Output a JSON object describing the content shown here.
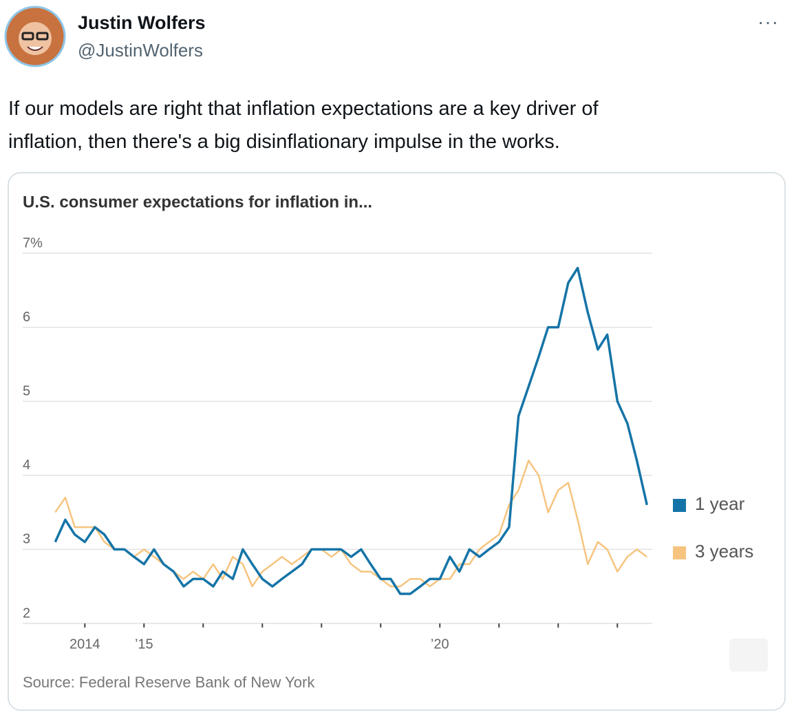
{
  "tweet": {
    "author": {
      "name": "Justin Wolfers",
      "handle": "@JustinWolfers"
    },
    "text": [
      "If our models are right that inflation expectations are a key driver of",
      "inflation, then there's a big disinflationary impulse in the works."
    ]
  },
  "chart_data": {
    "type": "line",
    "title": "U.S. consumer expectations for inflation in...",
    "source": "Source: Federal Reserve Bank of New York",
    "x": [
      2013.5,
      2013.67,
      2013.83,
      2014,
      2014.17,
      2014.33,
      2014.5,
      2014.67,
      2014.83,
      2015,
      2015.17,
      2015.33,
      2015.5,
      2015.67,
      2015.83,
      2016,
      2016.17,
      2016.33,
      2016.5,
      2016.67,
      2016.83,
      2017,
      2017.17,
      2017.33,
      2017.5,
      2017.67,
      2017.83,
      2018,
      2018.17,
      2018.33,
      2018.5,
      2018.67,
      2018.83,
      2019,
      2019.17,
      2019.33,
      2019.5,
      2019.67,
      2019.83,
      2020,
      2020.17,
      2020.33,
      2020.5,
      2020.67,
      2020.83,
      2021,
      2021.17,
      2021.33,
      2021.5,
      2021.67,
      2021.83,
      2022,
      2022.17,
      2022.33,
      2022.5,
      2022.67,
      2022.83,
      2023,
      2023.17,
      2023.33,
      2023.5
    ],
    "series": [
      {
        "name": "1 year",
        "color": "#1574a7",
        "values": [
          3.1,
          3.4,
          3.2,
          3.1,
          3.3,
          3.2,
          3.0,
          3.0,
          2.9,
          2.8,
          3.0,
          2.8,
          2.7,
          2.5,
          2.6,
          2.6,
          2.5,
          2.7,
          2.6,
          3.0,
          2.8,
          2.6,
          2.5,
          2.6,
          2.7,
          2.8,
          3.0,
          3.0,
          3.0,
          3.0,
          2.9,
          3.0,
          2.8,
          2.6,
          2.6,
          2.4,
          2.4,
          2.5,
          2.6,
          2.6,
          2.9,
          2.7,
          3.0,
          2.9,
          3.0,
          3.1,
          3.3,
          4.8,
          5.2,
          5.6,
          6.0,
          6.0,
          6.6,
          6.8,
          6.2,
          5.7,
          5.9,
          5.0,
          4.7,
          4.2,
          3.6
        ]
      },
      {
        "name": "3 years",
        "color": "#f6c47f",
        "values": [
          3.5,
          3.7,
          3.3,
          3.3,
          3.3,
          3.1,
          3.0,
          3.0,
          2.9,
          3.0,
          2.9,
          2.8,
          2.7,
          2.6,
          2.7,
          2.6,
          2.8,
          2.6,
          2.9,
          2.8,
          2.5,
          2.7,
          2.8,
          2.9,
          2.8,
          2.9,
          3.0,
          3.0,
          2.9,
          3.0,
          2.8,
          2.7,
          2.7,
          2.6,
          2.5,
          2.5,
          2.6,
          2.6,
          2.5,
          2.6,
          2.6,
          2.8,
          2.8,
          3.0,
          3.1,
          3.2,
          3.6,
          3.8,
          4.2,
          4.0,
          3.5,
          3.8,
          3.9,
          3.4,
          2.8,
          3.1,
          3.0,
          2.7,
          2.9,
          3.0,
          2.9
        ]
      }
    ],
    "xlim": [
      2012.95,
      2023.59
    ],
    "xticks": [
      2014,
      {
        "value": 2015,
        "label": "’15"
      },
      {
        "value": 2016,
        "label": null
      },
      {
        "value": 2017,
        "label": null
      },
      {
        "value": 2018,
        "label": null
      },
      {
        "value": 2019,
        "label": null
      },
      {
        "value": 2020,
        "label": "’20"
      },
      {
        "value": 2021,
        "label": null
      },
      {
        "value": 2022,
        "label": null
      },
      {
        "value": 2023,
        "label": null
      }
    ],
    "ylim": [
      2,
      7
    ],
    "yticks": [
      2,
      3,
      4,
      5,
      6,
      {
        "value": 7,
        "label": "7%"
      }
    ],
    "grid": true,
    "legend": "right"
  }
}
